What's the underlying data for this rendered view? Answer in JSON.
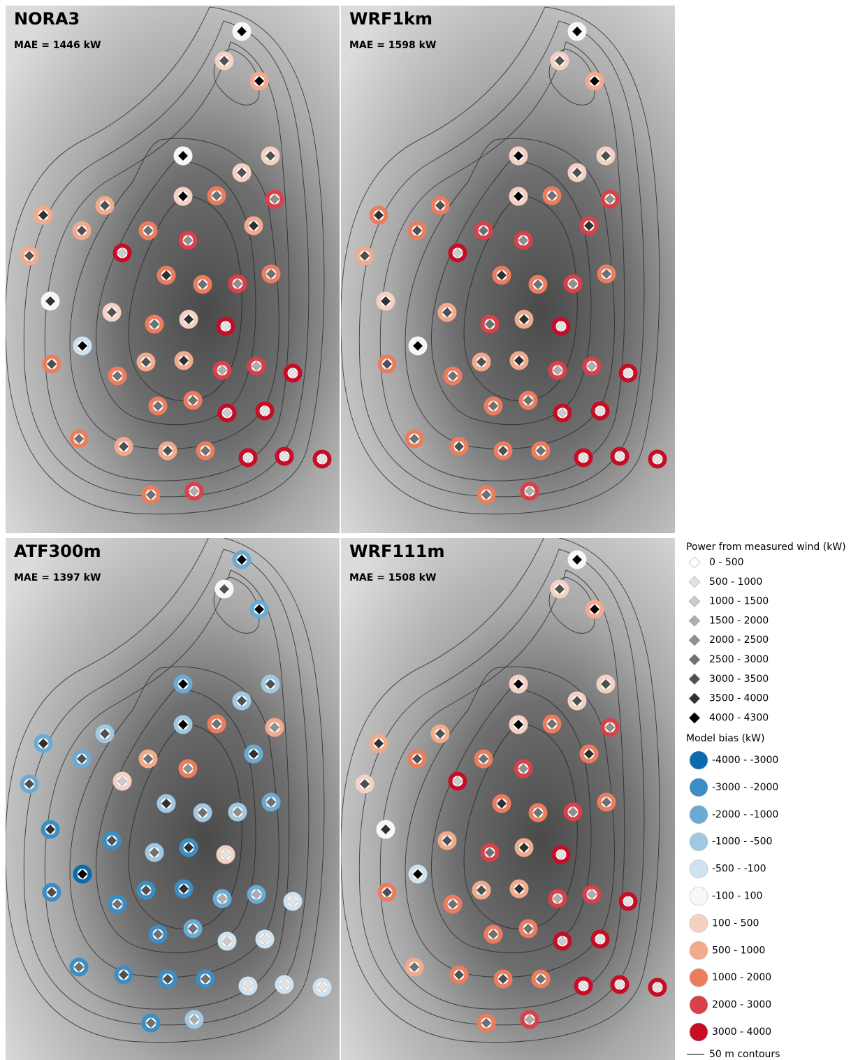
{
  "panels": [
    {
      "title": "NORA3",
      "mae": "MAE = 1446 kW"
    },
    {
      "title": "WRF1km",
      "mae": "MAE = 1598 kW"
    },
    {
      "title": "ATF300m",
      "mae": "MAE = 1397 kW"
    },
    {
      "title": "WRF111m",
      "mae": "MAE = 1508 kW"
    }
  ],
  "legend": {
    "power_title": "Power from measured wind (kW)",
    "power_classes": [
      "0 - 500",
      "500 - 1000",
      "1000 - 1500",
      "1500 - 2000",
      "2000 - 2500",
      "2500 - 3000",
      "3000 - 3500",
      "3500 - 4000",
      "4000 - 4300"
    ],
    "bias_title": "Model bias (kW)",
    "bias_classes": [
      "-4000 - -3000",
      "-3000 - -2000",
      "-2000 - -1000",
      "-1000 - -500",
      "-500 - -100",
      "-100 - 100",
      "100 - 500",
      "500 - 1000",
      "1000 - 2000",
      "2000 - 3000",
      "3000 - 4000"
    ],
    "contours": "50 m contours"
  }
}
